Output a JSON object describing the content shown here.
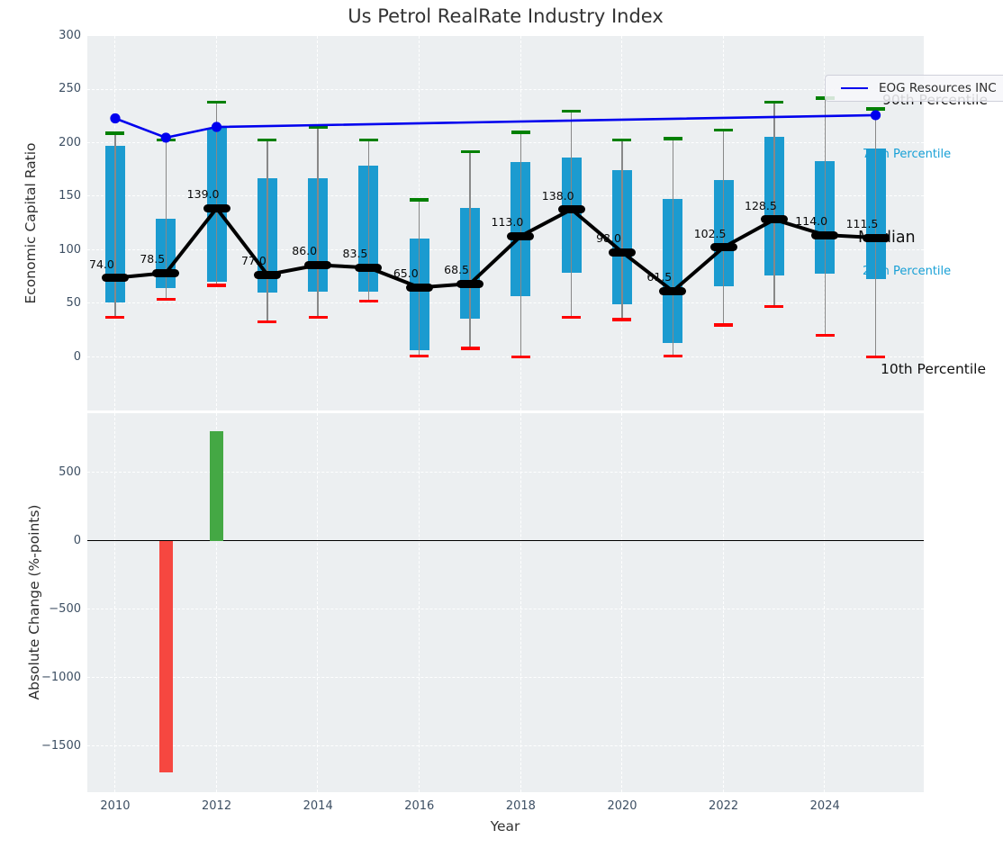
{
  "figure_title": "Us Petrol RealRate Industry Index",
  "legend": {
    "label": "EOG Resources INC"
  },
  "colors": {
    "plot_bg": "#eceff1",
    "grid": "#ffffff",
    "box": "#1b9bd0",
    "whisker": "#888888",
    "cap_90th": "#008000",
    "cap_10th": "#ff0000",
    "median_line": "#000000",
    "eog_line": "#0000ee",
    "bar_positive": "#44a844",
    "bar_negative": "#f64740",
    "tick_text": "#3d4f63",
    "annotation_cyan": "#18a0d6",
    "annotation_black": "#111111"
  },
  "chart_data": [
    {
      "type": "boxplot+line",
      "title": "Us Petrol RealRate Industry Index",
      "ylabel": "Economic Capital Ratio",
      "ylim": [
        -50,
        300
      ],
      "yticks": [
        300,
        250,
        200,
        150,
        100,
        50,
        0
      ],
      "xlim": [
        2009.45,
        2025.95
      ],
      "xticks": [
        2010,
        2012,
        2014,
        2016,
        2018,
        2020,
        2022,
        2024
      ],
      "grid": "white dashed, on",
      "legend_position": "upper right",
      "years": [
        2010,
        2011,
        2012,
        2013,
        2014,
        2015,
        2016,
        2017,
        2018,
        2019,
        2020,
        2021,
        2022,
        2023,
        2024,
        2025
      ],
      "series": [
        {
          "name": "90th Percentile",
          "values": [
            209,
            203,
            238,
            203,
            215,
            203,
            147,
            192,
            210,
            230,
            203,
            204,
            212,
            238,
            242,
            232
          ]
        },
        {
          "name": "75th Percentile",
          "values": [
            197,
            129,
            214,
            167,
            167,
            179,
            111,
            139,
            182,
            186,
            175,
            148,
            165,
            206,
            183,
            195
          ]
        },
        {
          "name": "Median",
          "values": [
            74.0,
            78.5,
            139.0,
            77.0,
            86.0,
            83.5,
            65.0,
            68.5,
            113.0,
            138.0,
            98.0,
            61.5,
            102.5,
            128.5,
            114.0,
            111.5
          ]
        },
        {
          "name": "25th Percentile",
          "values": [
            51,
            64,
            70,
            60,
            61,
            61,
            6,
            36,
            57,
            79,
            49,
            13,
            66,
            76,
            78,
            73
          ]
        },
        {
          "name": "10th Percentile",
          "values": [
            37,
            54,
            67,
            33,
            37,
            52,
            1,
            8,
            0,
            37,
            35,
            1,
            30,
            47,
            20,
            0
          ]
        }
      ],
      "median_labels": [
        "74.0",
        "78.5",
        "139.0",
        "77.0",
        "86.0",
        "83.5",
        "65.0",
        "68.5",
        "113.0",
        "138.0",
        "98.0",
        "61.5",
        "102.5",
        "128.5",
        "114.0",
        "111.5"
      ],
      "eog_series": {
        "name": "EOG Resources INC",
        "points": [
          {
            "x": 2010,
            "y": 223
          },
          {
            "x": 2011,
            "y": 205
          },
          {
            "x": 2012,
            "y": 215
          },
          {
            "x": 2025,
            "y": 226
          }
        ]
      },
      "annotations": [
        {
          "text": "90th Percentile",
          "color": "black",
          "size": 15.5
        },
        {
          "text": "75th Percentile",
          "color": "cyan",
          "size": 13
        },
        {
          "text": "Median",
          "color": "black",
          "size": 17.5
        },
        {
          "text": "25th Percentile",
          "color": "cyan",
          "size": 13
        },
        {
          "text": "10th Percentile",
          "color": "black",
          "size": 15.5
        }
      ]
    },
    {
      "type": "bar",
      "ylabel": "Absolute Change (%-points)",
      "xlabel": "Year",
      "ylim": [
        -1835,
        935
      ],
      "yticks": [
        500,
        0,
        -500,
        -1000,
        -1500
      ],
      "xticks": [
        2010,
        2012,
        2014,
        2016,
        2018,
        2020,
        2022,
        2024
      ],
      "zero_line": true,
      "bars": [
        {
          "x": 2011,
          "value": -1690,
          "direction": "negative"
        },
        {
          "x": 2012,
          "value": 805,
          "direction": "positive"
        }
      ]
    }
  ]
}
